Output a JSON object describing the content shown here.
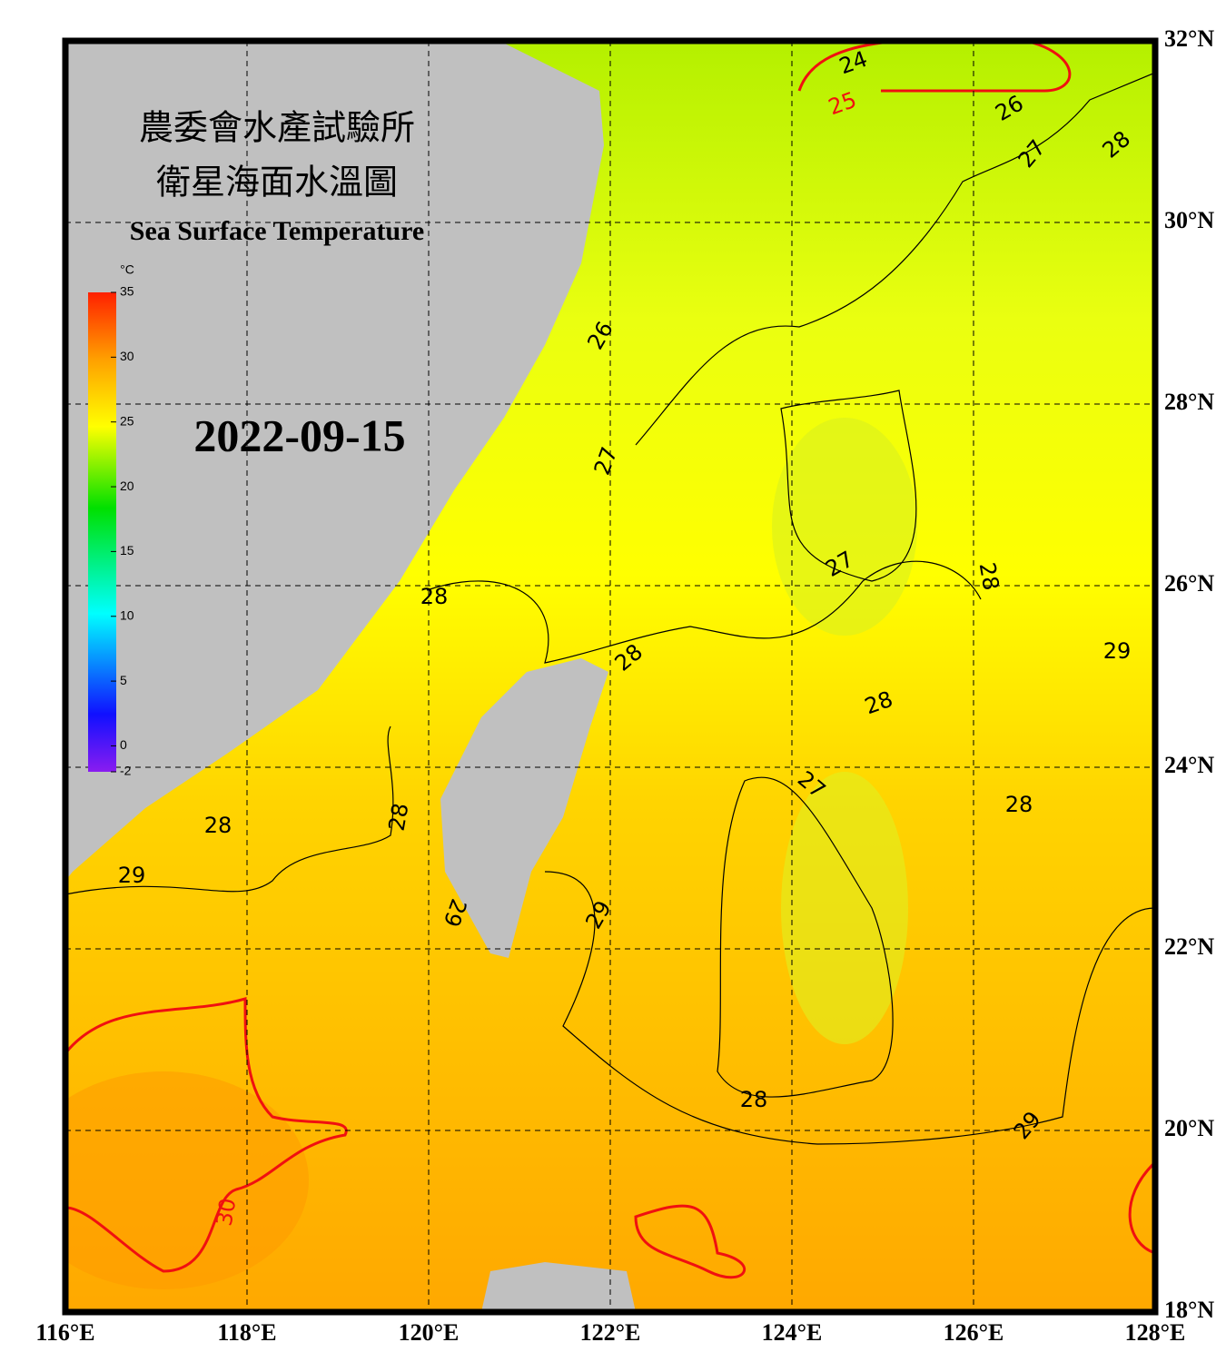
{
  "header": {
    "title_zh_1": "農委會水產試驗所",
    "title_zh_2": "衛星海面水溫圖",
    "title_en": "Sea Surface Temperature",
    "date": "2022-09-15"
  },
  "colorbar": {
    "unit": "°C",
    "range": [
      -2,
      35
    ],
    "ticks": [
      35,
      30,
      25,
      20,
      15,
      10,
      5,
      0,
      -2
    ]
  },
  "map": {
    "lon_range": [
      116,
      128
    ],
    "lat_range": [
      18,
      32
    ],
    "lon_ticks": [
      {
        "value": 116,
        "label": "116°E"
      },
      {
        "value": 118,
        "label": "118°E"
      },
      {
        "value": 120,
        "label": "120°E"
      },
      {
        "value": 122,
        "label": "122°E"
      },
      {
        "value": 124,
        "label": "124°E"
      },
      {
        "value": 126,
        "label": "126°E"
      },
      {
        "value": 128,
        "label": "128°E"
      }
    ],
    "lat_ticks": [
      {
        "value": 18,
        "label": "18°N"
      },
      {
        "value": 20,
        "label": "20°N"
      },
      {
        "value": 22,
        "label": "22°N"
      },
      {
        "value": 24,
        "label": "24°N"
      },
      {
        "value": 26,
        "label": "26°N"
      },
      {
        "value": 28,
        "label": "28°N"
      },
      {
        "value": 30,
        "label": "30°N"
      },
      {
        "value": 32,
        "label": "32°N"
      }
    ],
    "contour_labels": [
      "24",
      "25",
      "26",
      "27",
      "28",
      "26",
      "27",
      "27",
      "28",
      "29",
      "28",
      "28",
      "28",
      "27",
      "28",
      "28",
      "28",
      "29",
      "29",
      "29",
      "28",
      "29",
      "30"
    ]
  }
}
